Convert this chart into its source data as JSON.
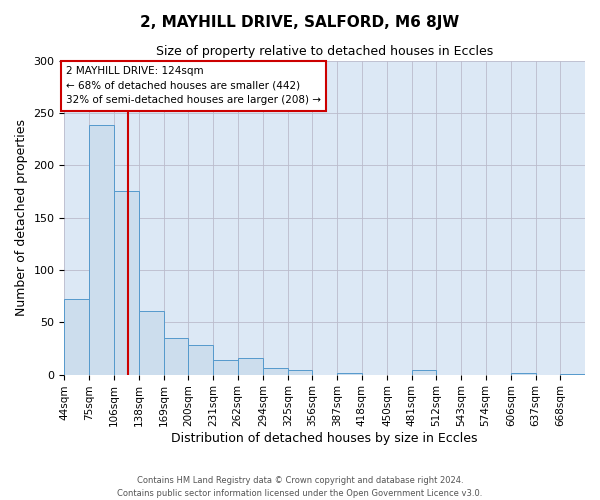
{
  "title_line1": "2, MAYHILL DRIVE, SALFORD, M6 8JW",
  "title_line2": "Size of property relative to detached houses in Eccles",
  "xlabel": "Distribution of detached houses by size in Eccles",
  "ylabel": "Number of detached properties",
  "bin_labels": [
    "44sqm",
    "75sqm",
    "106sqm",
    "138sqm",
    "169sqm",
    "200sqm",
    "231sqm",
    "262sqm",
    "294sqm",
    "325sqm",
    "356sqm",
    "387sqm",
    "418sqm",
    "450sqm",
    "481sqm",
    "512sqm",
    "543sqm",
    "574sqm",
    "606sqm",
    "637sqm",
    "668sqm"
  ],
  "bar_heights": [
    72,
    238,
    175,
    61,
    35,
    28,
    14,
    16,
    6,
    4,
    0,
    2,
    0,
    0,
    4,
    0,
    0,
    0,
    2,
    0,
    1
  ],
  "bar_color": "#ccdded",
  "bar_edge_color": "#5599cc",
  "vline_x": 124,
  "vline_color": "#cc0000",
  "annotation_title": "2 MAYHILL DRIVE: 124sqm",
  "annotation_line1": "← 68% of detached houses are smaller (442)",
  "annotation_line2": "32% of semi-detached houses are larger (208) →",
  "annotation_box_color": "#ffffff",
  "annotation_box_edge": "#cc0000",
  "ylim": [
    0,
    300
  ],
  "yticks": [
    0,
    50,
    100,
    150,
    200,
    250,
    300
  ],
  "grid_color": "#bbbbcc",
  "bg_color": "#dce8f5",
  "footer_line1": "Contains HM Land Registry data © Crown copyright and database right 2024.",
  "footer_line2": "Contains public sector information licensed under the Open Government Licence v3.0.",
  "bin_edges": [
    44,
    75,
    106,
    138,
    169,
    200,
    231,
    262,
    294,
    325,
    356,
    387,
    418,
    450,
    481,
    512,
    543,
    574,
    606,
    637,
    668,
    699
  ]
}
